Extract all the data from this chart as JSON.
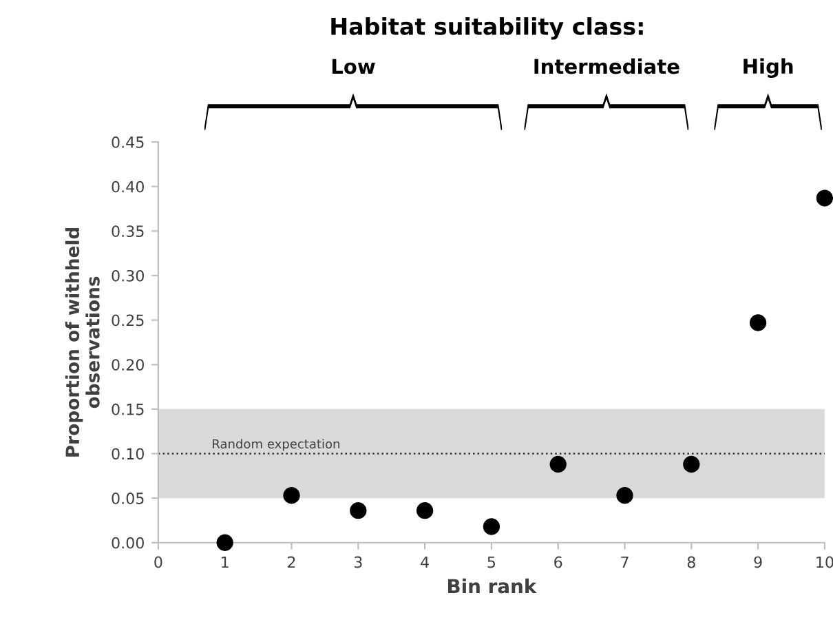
{
  "chart_data": {
    "type": "scatter",
    "title": "Habitat suitability class:",
    "xlabel": "Bin rank",
    "ylabel": "Proportion of withheld\nobservations",
    "annotations": [
      "Low",
      "Intermediate",
      "High"
    ],
    "x": [
      1,
      2,
      3,
      4,
      5,
      6,
      7,
      8,
      9,
      10
    ],
    "values": [
      0.0,
      0.053,
      0.036,
      0.036,
      0.018,
      0.088,
      0.053,
      0.088,
      0.247,
      0.387
    ],
    "color": "#000000",
    "marker": "circle",
    "grid": false,
    "xlim": [
      0,
      10
    ],
    "xticks": [
      0,
      1,
      2,
      3,
      4,
      5,
      6,
      7,
      8,
      9,
      10
    ],
    "ylim": [
      0,
      0.45
    ],
    "yticks": [
      {
        "value": 0,
        "label": "0.00"
      },
      {
        "value": 0.05,
        "label": "0.05"
      },
      {
        "value": 0.1,
        "label": "0.10"
      },
      {
        "value": 0.15,
        "label": "0.15"
      },
      {
        "value": 0.2,
        "label": "0.20"
      },
      {
        "value": 0.25,
        "label": "0.25"
      },
      {
        "value": 0.3,
        "label": "0.30"
      },
      {
        "value": 0.35,
        "label": "0.35"
      },
      {
        "value": 0.4,
        "label": "0.40"
      },
      {
        "value": 0.45,
        "label": "0.45"
      }
    ],
    "ref_lines": [
      {
        "axis": "y",
        "value": 0.1,
        "label": "Random expectation",
        "color": "#333333",
        "line_style": "dotted"
      }
    ],
    "bands": [
      {
        "axis": "y",
        "from": 0.05,
        "to": 0.15,
        "color": "#d9d9d9"
      }
    ]
  }
}
